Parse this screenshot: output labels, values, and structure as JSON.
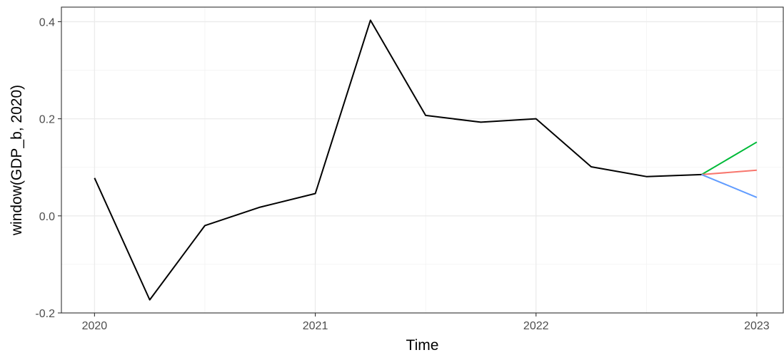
{
  "chart_data": {
    "type": "line",
    "xlabel": "Time",
    "ylabel": "window(GDP_b, 2020)",
    "xlim": [
      2019.85,
      2023.12
    ],
    "ylim": [
      -0.2,
      0.43
    ],
    "x_ticks": [
      2020,
      2021,
      2022,
      2023
    ],
    "x_tick_labels": [
      "2020",
      "2021",
      "2022",
      "2023"
    ],
    "y_ticks": [
      -0.2,
      0.0,
      0.2,
      0.4
    ],
    "y_tick_labels": [
      "-0.2",
      "0.0",
      "0.2",
      "0.4"
    ],
    "grid": true,
    "theme": "bw",
    "series": [
      {
        "color": "#000000",
        "x": [
          2020.0,
          2020.25,
          2020.5,
          2020.75,
          2021.0,
          2021.25,
          2021.5,
          2021.75,
          2022.0,
          2022.25,
          2022.5,
          2022.75
        ],
        "y": [
          0.078,
          -0.173,
          -0.02,
          0.018,
          0.046,
          0.403,
          0.207,
          0.193,
          0.2,
          0.101,
          0.081,
          0.085
        ]
      },
      {
        "color": "#00BA38",
        "x": [
          2022.75,
          2023.0
        ],
        "y": [
          0.085,
          0.152
        ]
      },
      {
        "color": "#F8766D",
        "x": [
          2022.75,
          2023.0
        ],
        "y": [
          0.085,
          0.094
        ]
      },
      {
        "color": "#619CFF",
        "x": [
          2022.75,
          2023.0
        ],
        "y": [
          0.085,
          0.038
        ]
      }
    ]
  }
}
